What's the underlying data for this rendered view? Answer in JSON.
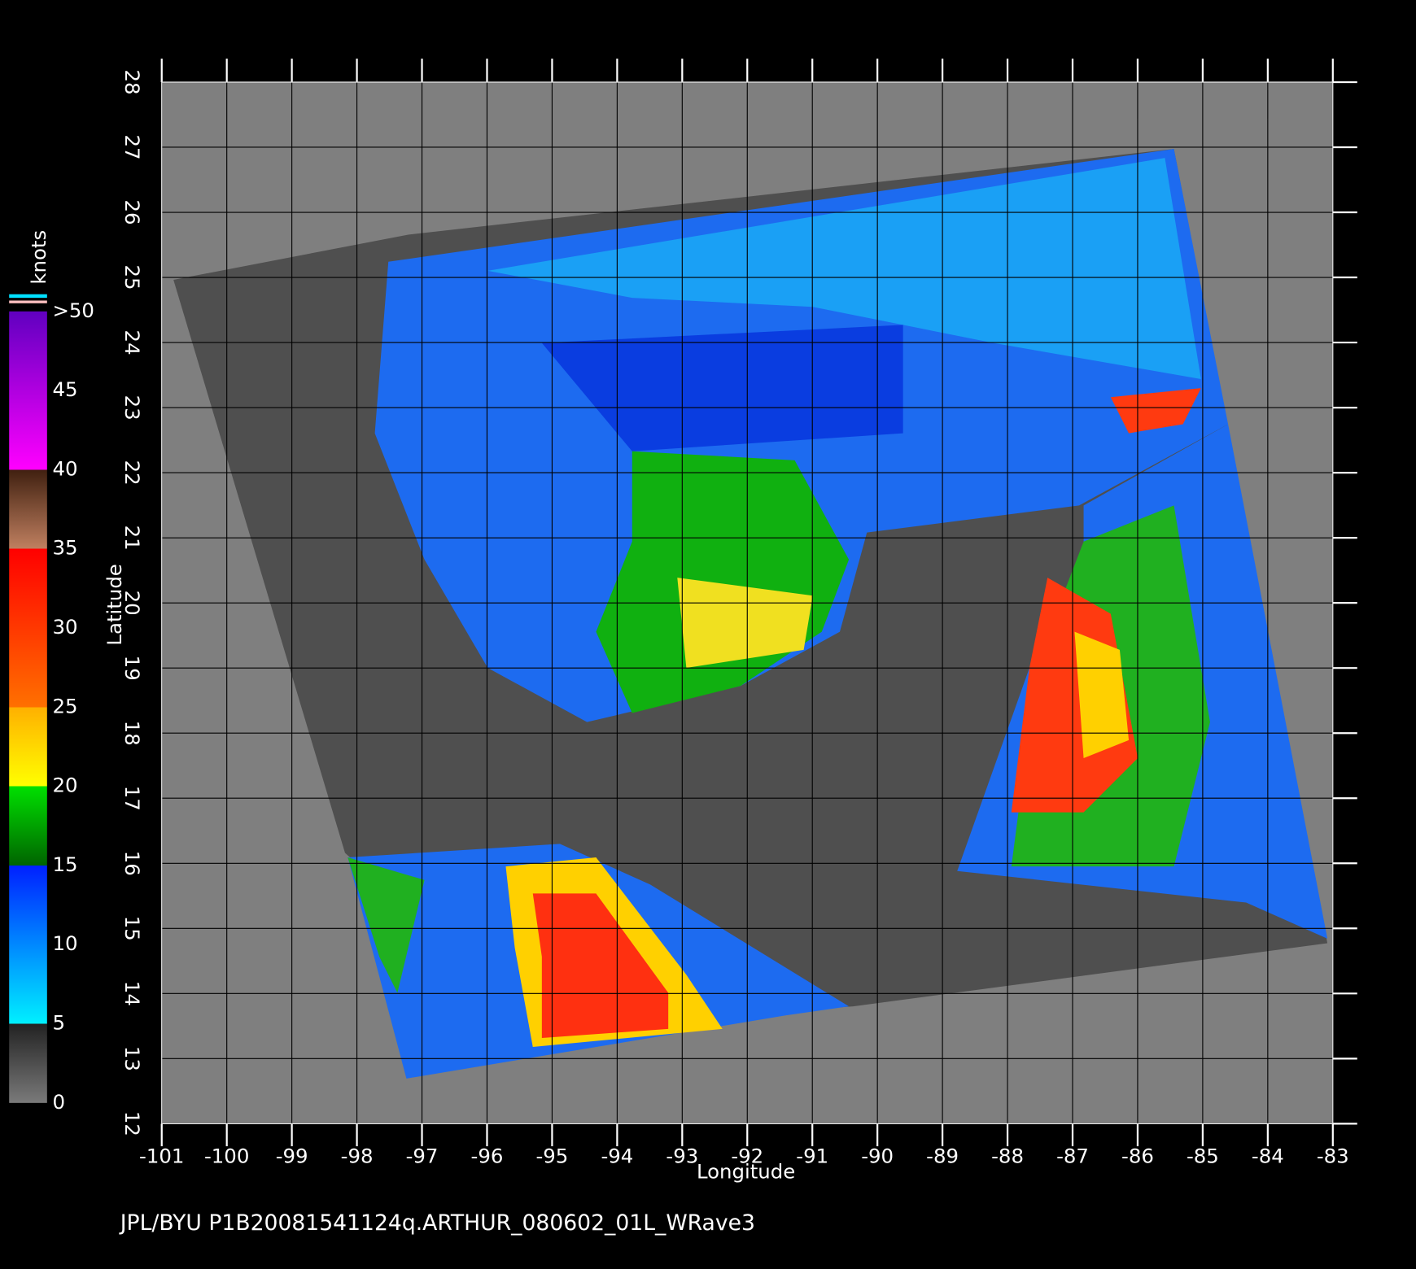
{
  "map": {
    "xlabel": "Longitude",
    "ylabel": "Latitude",
    "xlim": [
      -101,
      -83
    ],
    "ylim": [
      12,
      28
    ],
    "xticks": [
      -101,
      -100,
      -99,
      -98,
      -97,
      -96,
      -95,
      -94,
      -93,
      -92,
      -91,
      -90,
      -89,
      -88,
      -87,
      -86,
      -85,
      -84,
      -83
    ],
    "yticks": [
      12,
      13,
      14,
      15,
      16,
      17,
      18,
      19,
      20,
      21,
      22,
      23,
      24,
      25,
      26,
      27,
      28
    ]
  },
  "colorbar": {
    "title": "knots",
    "lim": [
      0,
      50
    ],
    "ticks": [
      0,
      5,
      10,
      15,
      20,
      25,
      30,
      35,
      40,
      45,
      {
        "value": 50,
        "label": ">50"
      }
    ]
  },
  "footer": "JPL/BYU  P1B20081541124q.ARTHUR_080602_01L_WRave3"
}
